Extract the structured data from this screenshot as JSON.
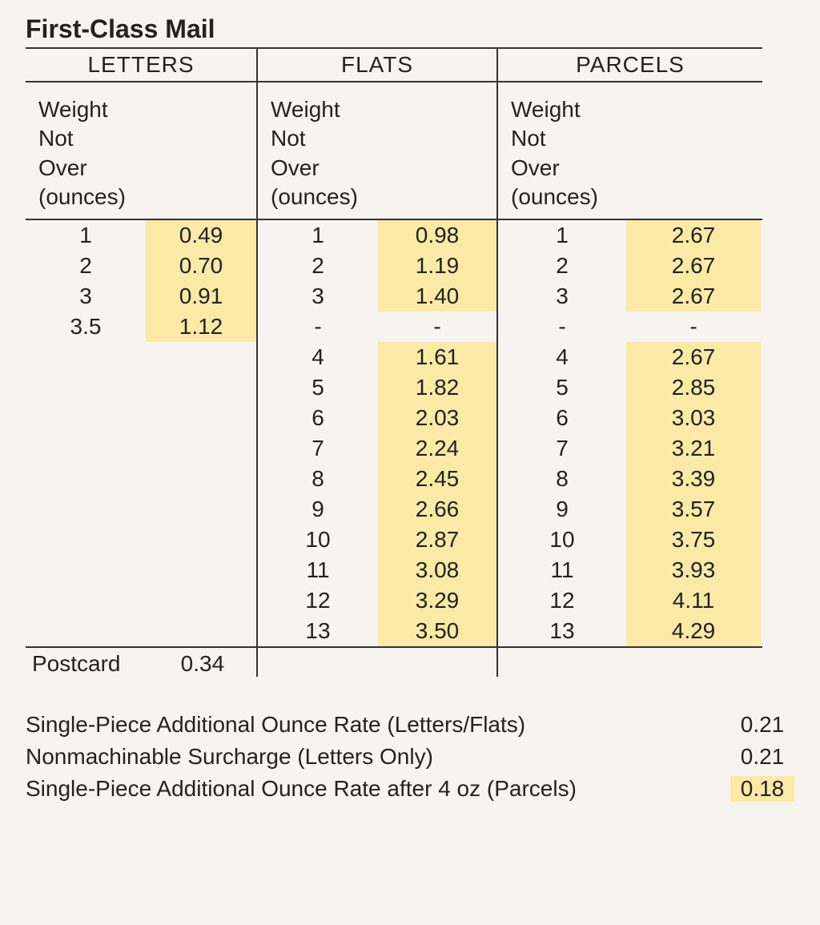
{
  "title": "First-Class Mail",
  "highlight_color": "#fbe9a6",
  "columns": {
    "letters": {
      "header": "LETTERS",
      "subheader": [
        "Weight",
        "Not",
        "Over",
        "(ounces)"
      ],
      "rows": [
        {
          "w": "1",
          "p": "0.49",
          "hl": true
        },
        {
          "w": "2",
          "p": "0.70",
          "hl": true
        },
        {
          "w": "3",
          "p": "0.91",
          "hl": true
        },
        {
          "w": "3.5",
          "p": "1.12",
          "hl": true
        }
      ],
      "postcard": {
        "label": "Postcard",
        "price": "0.34"
      }
    },
    "flats": {
      "header": "FLATS",
      "subheader": [
        "Weight",
        "Not",
        "Over",
        "(ounces)"
      ],
      "rows": [
        {
          "w": "1",
          "p": "0.98",
          "hl": true
        },
        {
          "w": "2",
          "p": "1.19",
          "hl": true
        },
        {
          "w": "3",
          "p": "1.40",
          "hl": true
        },
        {
          "w": "-",
          "p": "-",
          "hl": false
        },
        {
          "w": "4",
          "p": "1.61",
          "hl": true
        },
        {
          "w": "5",
          "p": "1.82",
          "hl": true
        },
        {
          "w": "6",
          "p": "2.03",
          "hl": true
        },
        {
          "w": "7",
          "p": "2.24",
          "hl": true
        },
        {
          "w": "8",
          "p": "2.45",
          "hl": true
        },
        {
          "w": "9",
          "p": "2.66",
          "hl": true
        },
        {
          "w": "10",
          "p": "2.87",
          "hl": true
        },
        {
          "w": "11",
          "p": "3.08",
          "hl": true
        },
        {
          "w": "12",
          "p": "3.29",
          "hl": true
        },
        {
          "w": "13",
          "p": "3.50",
          "hl": true
        }
      ]
    },
    "parcels": {
      "header": "PARCELS",
      "subheader": [
        "Weight",
        "Not",
        "Over",
        "(ounces)"
      ],
      "rows": [
        {
          "w": "1",
          "p": "2.67",
          "hl": true
        },
        {
          "w": "2",
          "p": "2.67",
          "hl": true
        },
        {
          "w": "3",
          "p": "2.67",
          "hl": true
        },
        {
          "w": "-",
          "p": "-",
          "hl": false
        },
        {
          "w": "4",
          "p": "2.67",
          "hl": true
        },
        {
          "w": "5",
          "p": "2.85",
          "hl": true
        },
        {
          "w": "6",
          "p": "3.03",
          "hl": true
        },
        {
          "w": "7",
          "p": "3.21",
          "hl": true
        },
        {
          "w": "8",
          "p": "3.39",
          "hl": true
        },
        {
          "w": "9",
          "p": "3.57",
          "hl": true
        },
        {
          "w": "10",
          "p": "3.75",
          "hl": true
        },
        {
          "w": "11",
          "p": "3.93",
          "hl": true
        },
        {
          "w": "12",
          "p": "4.11",
          "hl": true
        },
        {
          "w": "13",
          "p": "4.29",
          "hl": true
        }
      ]
    }
  },
  "notes": [
    {
      "label": "Single-Piece Additional Ounce Rate (Letters/Flats)",
      "value": "0.21",
      "hl": false
    },
    {
      "label": "Nonmachinable Surcharge (Letters Only)",
      "value": "0.21",
      "hl": false
    },
    {
      "label": "Single-Piece Additional Ounce Rate after 4 oz (Parcels)",
      "value": "0.18",
      "hl": true
    }
  ]
}
